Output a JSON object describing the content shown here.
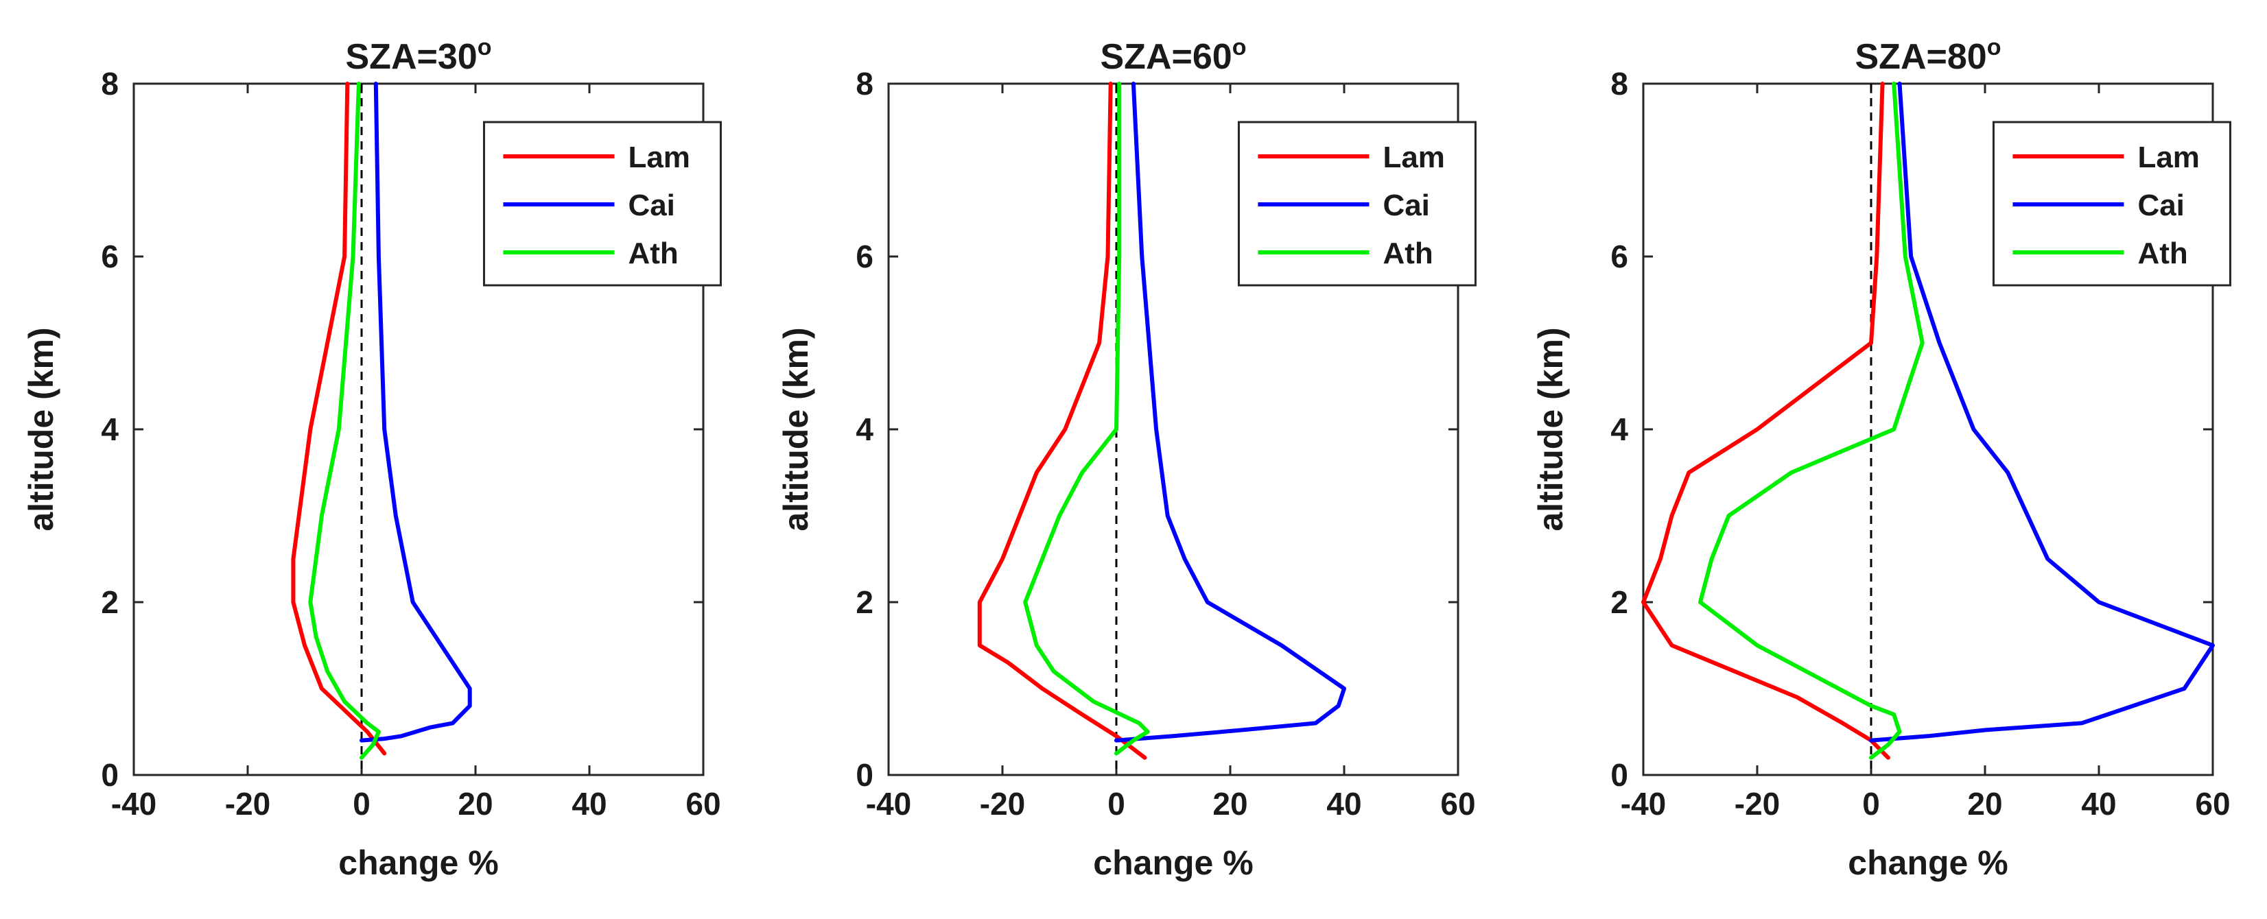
{
  "figure": {
    "series_colors": {
      "Lam": "#ff0000",
      "Cai": "#0000ff",
      "Ath": "#00ee00"
    }
  },
  "chart_data": [
    {
      "type": "line",
      "title": "SZA=30",
      "title_superscript": "o",
      "xlabel": "change %",
      "ylabel": "altitude (km)",
      "xlim": [
        -40,
        60
      ],
      "ylim": [
        0,
        8
      ],
      "xticks": [
        -40,
        -20,
        0,
        20,
        40,
        60
      ],
      "yticks": [
        0,
        2,
        4,
        6,
        8
      ],
      "legend": {
        "position": "top-right",
        "entries": [
          "Lam",
          "Cai",
          "Ath"
        ]
      },
      "reference_line": {
        "x": 0,
        "style": "dashed"
      },
      "series": [
        {
          "name": "Lam",
          "color": "#ff0000",
          "x": [
            4,
            1,
            -3,
            -7,
            -10,
            -12,
            -12,
            -11,
            -9,
            -6,
            -3,
            -2.5
          ],
          "y": [
            0.25,
            0.5,
            0.75,
            1.0,
            1.5,
            2.0,
            2.5,
            3.0,
            4.0,
            5.0,
            6.0,
            8.0
          ]
        },
        {
          "name": "Cai",
          "color": "#0000ff",
          "x": [
            0,
            4,
            7,
            12,
            16,
            19,
            19,
            9,
            6,
            4,
            3,
            2.5
          ],
          "y": [
            0.4,
            0.42,
            0.45,
            0.55,
            0.6,
            0.8,
            1.0,
            2.0,
            3.0,
            4.0,
            6.0,
            8.0
          ]
        },
        {
          "name": "Ath",
          "color": "#00ee00",
          "x": [
            0,
            2,
            3,
            1,
            -3,
            -6,
            -8,
            -9,
            -7,
            -4,
            -1.5,
            -0.5
          ],
          "y": [
            0.2,
            0.35,
            0.5,
            0.6,
            0.85,
            1.2,
            1.6,
            2.0,
            3.0,
            4.0,
            6.0,
            8.0
          ]
        }
      ]
    },
    {
      "type": "line",
      "title": "SZA=60",
      "title_superscript": "o",
      "xlabel": "change %",
      "ylabel": "altitude (km)",
      "xlim": [
        -40,
        60
      ],
      "ylim": [
        0,
        8
      ],
      "xticks": [
        -40,
        -20,
        0,
        20,
        40,
        60
      ],
      "yticks": [
        0,
        2,
        4,
        6,
        8
      ],
      "legend": {
        "position": "top-right",
        "entries": [
          "Lam",
          "Cai",
          "Ath"
        ]
      },
      "reference_line": {
        "x": 0,
        "style": "dashed"
      },
      "series": [
        {
          "name": "Lam",
          "color": "#ff0000",
          "x": [
            5,
            0,
            -6,
            -13,
            -19,
            -24,
            -24,
            -20,
            -14,
            -9,
            -3,
            -1.5,
            -1
          ],
          "y": [
            0.2,
            0.45,
            0.7,
            1.0,
            1.3,
            1.5,
            2.0,
            2.5,
            3.5,
            4.0,
            5.0,
            6.0,
            8.0
          ]
        },
        {
          "name": "Cai",
          "color": "#0000ff",
          "x": [
            0,
            10,
            22,
            35,
            39,
            40,
            29,
            16,
            12,
            9,
            7,
            4.5,
            3
          ],
          "y": [
            0.4,
            0.45,
            0.52,
            0.6,
            0.8,
            1.0,
            1.5,
            2.0,
            2.5,
            3.0,
            4.0,
            6.0,
            8.0
          ]
        },
        {
          "name": "Ath",
          "color": "#00ee00",
          "x": [
            0,
            3,
            5.5,
            4,
            -4,
            -11,
            -14,
            -16,
            -10,
            -6,
            0,
            0.5,
            0.5
          ],
          "y": [
            0.25,
            0.4,
            0.5,
            0.6,
            0.85,
            1.2,
            1.5,
            2.0,
            3.0,
            3.5,
            4.0,
            6.0,
            8.0
          ]
        }
      ]
    },
    {
      "type": "line",
      "title": "SZA=80",
      "title_superscript": "o",
      "xlabel": "change %",
      "ylabel": "altitude (km)",
      "xlim": [
        -40,
        60
      ],
      "ylim": [
        0,
        8
      ],
      "xticks": [
        -40,
        -20,
        0,
        20,
        40,
        60
      ],
      "yticks": [
        0,
        2,
        4,
        6,
        8
      ],
      "legend": {
        "position": "top-right",
        "entries": [
          "Lam",
          "Cai",
          "Ath"
        ]
      },
      "reference_line": {
        "x": 0,
        "style": "dashed"
      },
      "series": [
        {
          "name": "Lam",
          "color": "#ff0000",
          "x": [
            3,
            0,
            -5,
            -13,
            -24,
            -35,
            -40,
            -37,
            -35,
            -32,
            -20,
            0,
            1,
            2
          ],
          "y": [
            0.2,
            0.4,
            0.6,
            0.9,
            1.2,
            1.5,
            2.0,
            2.5,
            3.0,
            3.5,
            4.0,
            5.0,
            6.0,
            8.0
          ]
        },
        {
          "name": "Cai",
          "color": "#0000ff",
          "x": [
            0,
            10,
            20,
            37,
            55,
            60,
            40,
            31,
            24,
            18,
            12,
            7,
            5
          ],
          "y": [
            0.4,
            0.45,
            0.52,
            0.6,
            1.0,
            1.5,
            2.0,
            2.5,
            3.5,
            4.0,
            5.0,
            6.0,
            8.0
          ]
        },
        {
          "name": "Ath",
          "color": "#00ee00",
          "x": [
            0,
            3,
            5,
            4,
            0,
            -20,
            -30,
            -28,
            -25,
            -14,
            4,
            9,
            6,
            4
          ],
          "y": [
            0.2,
            0.35,
            0.5,
            0.7,
            0.8,
            1.5,
            2.0,
            2.5,
            3.0,
            3.5,
            4.0,
            5.0,
            6.0,
            8.0
          ]
        }
      ]
    }
  ]
}
